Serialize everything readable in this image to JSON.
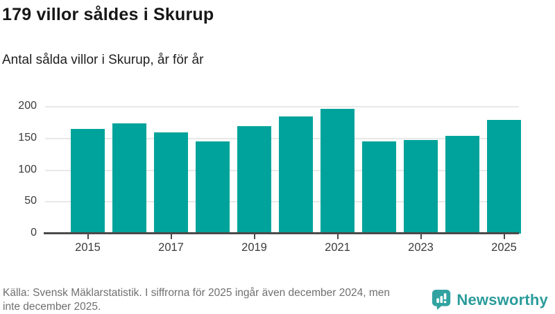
{
  "header": {
    "title": "179 villor såldes i Skurup",
    "subtitle": "Antal sålda villor i Skurup, år för år"
  },
  "chart_data": {
    "type": "bar",
    "x": [
      2015,
      2016,
      2017,
      2018,
      2019,
      2020,
      2021,
      2022,
      2023,
      2024,
      2025
    ],
    "values": [
      165,
      174,
      160,
      145,
      169,
      185,
      197,
      145,
      147,
      154,
      179
    ],
    "title": "179 villor såldes i Skurup",
    "subtitle": "Antal sålda villor i Skurup, år för år",
    "xlabel": "",
    "ylabel": "",
    "ylim": [
      0,
      200
    ],
    "yticks": [
      0,
      50,
      100,
      150,
      200
    ],
    "xticks": [
      2015,
      2017,
      2019,
      2021,
      2023,
      2025
    ],
    "bar_color": "#00a39b",
    "grid": "horizontal",
    "legend": "none"
  },
  "footer": {
    "source_line1": "Källa: Svensk Mäklarstatistik. I siffrorna för 2025 ingår även december 2024, men",
    "source_line2": "inte december 2025.",
    "brand": "Newsworthy",
    "brand_color": "#2b9c9b",
    "logo_icon": "bar-chart-speech-bubble-icon"
  }
}
